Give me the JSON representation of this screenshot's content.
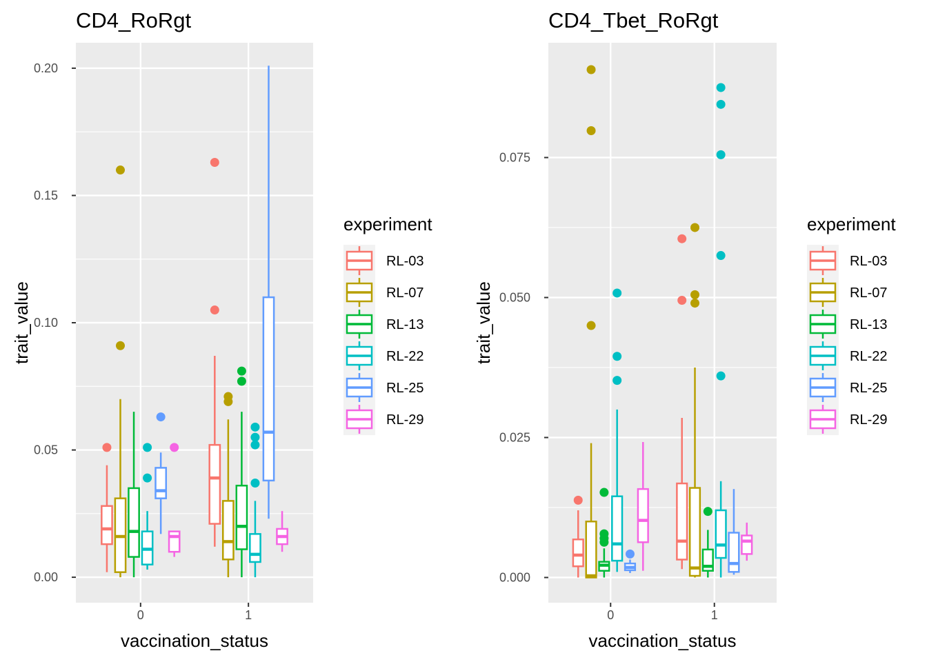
{
  "chart_data": [
    {
      "type": "boxplot",
      "title": "CD4_RoRgt",
      "xlabel": "vaccination_status",
      "ylabel": "trait_value",
      "categories": [
        "0",
        "1"
      ],
      "ylim": [
        -0.01,
        0.21
      ],
      "yticks": [
        0.0,
        0.05,
        0.1,
        0.15,
        0.2
      ],
      "ytick_labels": [
        "0.00",
        "0.05",
        "0.10",
        "0.15",
        "0.20"
      ],
      "grid": true,
      "legend": {
        "title": "experiment",
        "placement": "right"
      },
      "series": [
        {
          "name": "RL-03",
          "color": "#F8766D",
          "boxes": [
            {
              "category": "0",
              "lower_whisker": 0.002,
              "q1": 0.013,
              "median": 0.019,
              "q3": 0.028,
              "upper_whisker": 0.044,
              "outliers": [
                0.051
              ]
            },
            {
              "category": "1",
              "lower_whisker": 0.012,
              "q1": 0.021,
              "median": 0.039,
              "q3": 0.052,
              "upper_whisker": 0.087,
              "outliers": [
                0.105,
                0.163
              ]
            }
          ]
        },
        {
          "name": "RL-07",
          "color": "#B79F00",
          "boxes": [
            {
              "category": "0",
              "lower_whisker": 0.0,
              "q1": 0.002,
              "median": 0.016,
              "q3": 0.031,
              "upper_whisker": 0.07,
              "outliers": [
                0.091,
                0.16
              ]
            },
            {
              "category": "1",
              "lower_whisker": 0.0,
              "q1": 0.007,
              "median": 0.014,
              "q3": 0.03,
              "upper_whisker": 0.062,
              "outliers": [
                0.069,
                0.071
              ]
            }
          ]
        },
        {
          "name": "RL-13",
          "color": "#00BA38",
          "boxes": [
            {
              "category": "0",
              "lower_whisker": 0.0,
              "q1": 0.008,
              "median": 0.018,
              "q3": 0.035,
              "upper_whisker": 0.065,
              "outliers": []
            },
            {
              "category": "1",
              "lower_whisker": 0.0,
              "q1": 0.011,
              "median": 0.02,
              "q3": 0.036,
              "upper_whisker": 0.065,
              "outliers": [
                0.077,
                0.081
              ]
            }
          ]
        },
        {
          "name": "RL-22",
          "color": "#00BFC4",
          "boxes": [
            {
              "category": "0",
              "lower_whisker": 0.003,
              "q1": 0.005,
              "median": 0.011,
              "q3": 0.018,
              "upper_whisker": 0.026,
              "outliers": [
                0.039,
                0.051
              ]
            },
            {
              "category": "1",
              "lower_whisker": 0.0,
              "q1": 0.006,
              "median": 0.009,
              "q3": 0.017,
              "upper_whisker": 0.03,
              "outliers": [
                0.037,
                0.052,
                0.055,
                0.059
              ]
            }
          ]
        },
        {
          "name": "RL-25",
          "color": "#619CFF",
          "boxes": [
            {
              "category": "0",
              "lower_whisker": 0.017,
              "q1": 0.031,
              "median": 0.034,
              "q3": 0.043,
              "upper_whisker": 0.049,
              "outliers": [
                0.063
              ]
            },
            {
              "category": "1",
              "lower_whisker": 0.023,
              "q1": 0.038,
              "median": 0.057,
              "q3": 0.11,
              "upper_whisker": 0.201,
              "outliers": []
            }
          ]
        },
        {
          "name": "RL-29",
          "color": "#F564E3",
          "boxes": [
            {
              "category": "0",
              "lower_whisker": 0.008,
              "q1": 0.01,
              "median": 0.016,
              "q3": 0.018,
              "upper_whisker": 0.018,
              "outliers": [
                0.051
              ]
            },
            {
              "category": "1",
              "lower_whisker": 0.01,
              "q1": 0.013,
              "median": 0.016,
              "q3": 0.019,
              "upper_whisker": 0.026,
              "outliers": []
            }
          ]
        }
      ]
    },
    {
      "type": "boxplot",
      "title": "CD4_Tbet_RoRgt",
      "xlabel": "vaccination_status",
      "ylabel": "trait_value",
      "categories": [
        "0",
        "1"
      ],
      "ylim": [
        -0.0045,
        0.0955
      ],
      "yticks": [
        0.0,
        0.025,
        0.05,
        0.075
      ],
      "ytick_labels": [
        "0.000",
        "0.025",
        "0.050",
        "0.075"
      ],
      "grid": true,
      "legend": {
        "title": "experiment",
        "placement": "right"
      },
      "series": [
        {
          "name": "RL-03",
          "color": "#F8766D",
          "boxes": [
            {
              "category": "0",
              "lower_whisker": 0.0,
              "q1": 0.002,
              "median": 0.004,
              "q3": 0.0068,
              "upper_whisker": 0.012,
              "outliers": [
                0.0138
              ]
            },
            {
              "category": "1",
              "lower_whisker": 0.0015,
              "q1": 0.0032,
              "median": 0.0065,
              "q3": 0.0168,
              "upper_whisker": 0.0285,
              "outliers": [
                0.0495,
                0.0605
              ]
            }
          ]
        },
        {
          "name": "RL-07",
          "color": "#B79F00",
          "boxes": [
            {
              "category": "0",
              "lower_whisker": 0.0,
              "q1": 0.0,
              "median": 0.0003,
              "q3": 0.01,
              "upper_whisker": 0.024,
              "outliers": [
                0.045,
                0.0798,
                0.0907
              ]
            },
            {
              "category": "1",
              "lower_whisker": 0.0,
              "q1": 0.0003,
              "median": 0.0017,
              "q3": 0.016,
              "upper_whisker": 0.0375,
              "outliers": [
                0.049,
                0.0505,
                0.0625
              ]
            }
          ]
        },
        {
          "name": "RL-13",
          "color": "#00BA38",
          "boxes": [
            {
              "category": "0",
              "lower_whisker": 0.0,
              "q1": 0.0012,
              "median": 0.0022,
              "q3": 0.0028,
              "upper_whisker": 0.0052,
              "outliers": [
                0.0063,
                0.007,
                0.0078,
                0.0152
              ]
            },
            {
              "category": "1",
              "lower_whisker": 0.0,
              "q1": 0.0012,
              "median": 0.002,
              "q3": 0.005,
              "upper_whisker": 0.0085,
              "outliers": [
                0.0118
              ]
            }
          ]
        },
        {
          "name": "RL-22",
          "color": "#00BFC4",
          "boxes": [
            {
              "category": "0",
              "lower_whisker": 0.001,
              "q1": 0.003,
              "median": 0.006,
              "q3": 0.0145,
              "upper_whisker": 0.03,
              "outliers": [
                0.0352,
                0.0395,
                0.0508
              ]
            },
            {
              "category": "1",
              "lower_whisker": 0.0,
              "q1": 0.0035,
              "median": 0.0058,
              "q3": 0.012,
              "upper_whisker": 0.0172,
              "outliers": [
                0.036,
                0.0575,
                0.0755,
                0.0845,
                0.0875
              ]
            }
          ]
        },
        {
          "name": "RL-25",
          "color": "#619CFF",
          "boxes": [
            {
              "category": "0",
              "lower_whisker": 0.0008,
              "q1": 0.0013,
              "median": 0.0018,
              "q3": 0.0025,
              "upper_whisker": 0.0032,
              "outliers": [
                0.0042
              ]
            },
            {
              "category": "1",
              "lower_whisker": 0.0005,
              "q1": 0.001,
              "median": 0.0025,
              "q3": 0.008,
              "upper_whisker": 0.0158,
              "outliers": []
            }
          ]
        },
        {
          "name": "RL-29",
          "color": "#F564E3",
          "boxes": [
            {
              "category": "0",
              "lower_whisker": 0.0012,
              "q1": 0.0063,
              "median": 0.0102,
              "q3": 0.0158,
              "upper_whisker": 0.0242,
              "outliers": []
            },
            {
              "category": "1",
              "lower_whisker": 0.003,
              "q1": 0.0042,
              "median": 0.0065,
              "q3": 0.0075,
              "upper_whisker": 0.0098,
              "outliers": []
            }
          ]
        }
      ]
    }
  ]
}
